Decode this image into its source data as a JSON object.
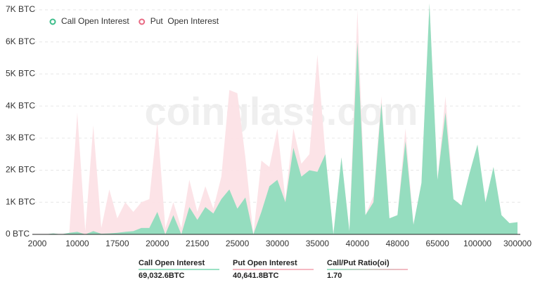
{
  "watermark": "coinglass.com",
  "chart_data": {
    "type": "area",
    "categories": [
      "2000",
      null,
      null,
      null,
      null,
      "10000",
      null,
      null,
      null,
      null,
      "17500",
      null,
      null,
      null,
      null,
      "20000",
      null,
      null,
      null,
      null,
      "21500",
      null,
      null,
      null,
      null,
      "25000",
      null,
      null,
      null,
      null,
      "30000",
      null,
      null,
      null,
      null,
      "35000",
      null,
      null,
      null,
      null,
      "40000",
      null,
      null,
      null,
      null,
      "48000",
      null,
      null,
      null,
      null,
      "65000",
      null,
      null,
      null,
      null,
      "100000",
      null,
      null,
      null,
      null,
      "300000"
    ],
    "series": [
      {
        "name": "Put  Open Interest",
        "color": "#fce1e6",
        "values": [
          0,
          0,
          30,
          0,
          50,
          3800,
          100,
          3400,
          200,
          1400,
          500,
          1000,
          700,
          1000,
          1100,
          3500,
          200,
          1000,
          200,
          1700,
          700,
          1500,
          800,
          1800,
          4500,
          4400,
          2400,
          0,
          2300,
          2100,
          3300,
          1100,
          3300,
          2200,
          2500,
          5600,
          2500,
          0,
          2400,
          100,
          7000,
          600,
          1200,
          4300,
          500,
          600,
          3300,
          300,
          1600,
          7200,
          1700,
          4300,
          1100,
          900,
          1900,
          2800,
          1000,
          2100,
          600,
          350,
          380
        ]
      },
      {
        "name": "Call Open Interest",
        "color": "#8fdcbd",
        "values": [
          0,
          0,
          30,
          0,
          50,
          80,
          0,
          100,
          20,
          30,
          50,
          80,
          100,
          200,
          200,
          700,
          0,
          600,
          0,
          850,
          450,
          850,
          650,
          1100,
          1400,
          800,
          1150,
          0,
          700,
          1500,
          1700,
          1000,
          2700,
          1800,
          2000,
          1950,
          2500,
          0,
          2400,
          100,
          6000,
          600,
          1000,
          4100,
          500,
          600,
          2900,
          300,
          1600,
          7200,
          1700,
          3800,
          1100,
          900,
          1900,
          2800,
          1000,
          2100,
          600,
          350,
          380
        ]
      }
    ],
    "legend": "top-left",
    "grid": true,
    "ylim": [
      0,
      7000
    ],
    "yticks": [
      {
        "value": 0,
        "label": "0 BTC"
      },
      {
        "value": 1000,
        "label": "1K BTC"
      },
      {
        "value": 2000,
        "label": "2K BTC"
      },
      {
        "value": 3000,
        "label": "3K BTC"
      },
      {
        "value": 4000,
        "label": "4K BTC"
      },
      {
        "value": 5000,
        "label": "5K BTC"
      },
      {
        "value": 6000,
        "label": "6K BTC"
      },
      {
        "value": 7000,
        "label": "7K BTC"
      }
    ]
  },
  "summary": [
    {
      "label": "Call Open Interest",
      "value": "69,032.6BTC"
    },
    {
      "label": "Put Open Interest",
      "value": "40,641.8BTC"
    },
    {
      "label": "Call/Put Ratio(oi)",
      "value": "1.70"
    }
  ]
}
